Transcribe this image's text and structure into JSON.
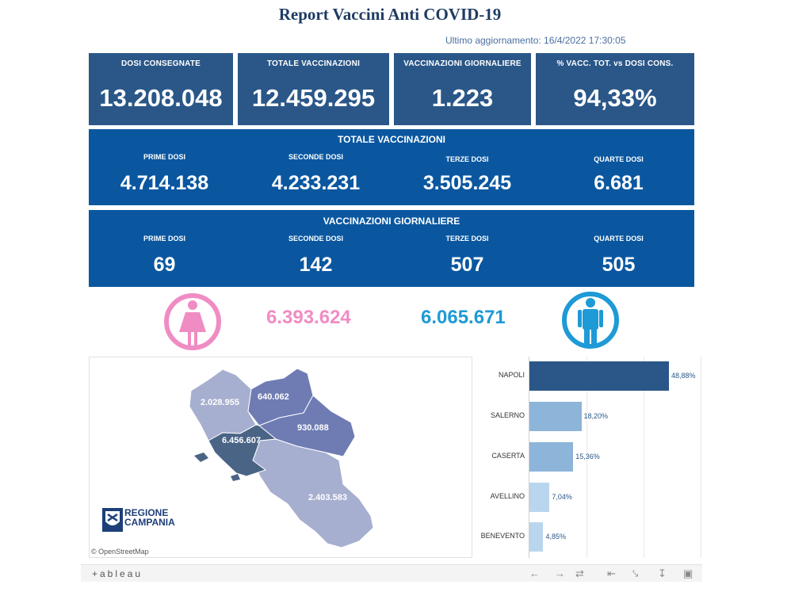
{
  "title": "Report Vaccini Anti COVID-19",
  "updated": "Ultimo aggiornamento: 16/4/2022 17:30:05",
  "kpis": [
    {
      "label": "DOSI  CONSEGNATE",
      "value": "13.208.048"
    },
    {
      "label": "TOTALE VACCINAZIONI",
      "value": "12.459.295"
    },
    {
      "label": "VACCINAZIONI GIORNALIERE",
      "value": "1.223"
    },
    {
      "label": "% VACC. TOT. vs DOSI CONS.",
      "value": "94,33%"
    }
  ],
  "totale": {
    "title": "TOTALE VACCINAZIONI",
    "items": [
      {
        "label": "PRIME DOSI",
        "value": "4.714.138"
      },
      {
        "label": "SECONDE DOSI",
        "value": "4.233.231"
      },
      {
        "label": "TERZE DOSI",
        "value": "3.505.245"
      },
      {
        "label": "QUARTE DOSI",
        "value": "6.681"
      }
    ]
  },
  "giornaliere": {
    "title": "VACCINAZIONI GIORNALIERE",
    "items": [
      {
        "label": "PRIME DOSI",
        "value": "69"
      },
      {
        "label": "SECONDE DOSI",
        "value": "142"
      },
      {
        "label": "TERZE DOSI",
        "value": "507"
      },
      {
        "label": "QUARTE DOSI",
        "value": "505"
      }
    ]
  },
  "gender": {
    "female_value": "6.393.624",
    "male_value": "6.065.671",
    "female_icon": "female-icon",
    "male_icon": "male-icon",
    "female_color": "#f08cc4",
    "male_color": "#1e9ad6"
  },
  "map": {
    "labels": {
      "caserta": "2.028.955",
      "benevento": "640.062",
      "avellino": "930.088",
      "napoli": "6.456.607",
      "salerno": "2.403.583"
    },
    "logo_line1": "REGIONE",
    "logo_line2": "CAMPANIA",
    "attribution": "© OpenStreetMap"
  },
  "chart_data": {
    "type": "bar",
    "orientation": "horizontal",
    "categories": [
      "NAPOLI",
      "SALERNO",
      "CASERTA",
      "AVELLINO",
      "BENEVENTO"
    ],
    "values": [
      48.88,
      18.2,
      15.36,
      7.04,
      4.85
    ],
    "value_labels": [
      "48,88%",
      "18,20%",
      "15,36%",
      "7,04%",
      "4,85%"
    ],
    "colors": [
      "#2a5788",
      "#8db4d9",
      "#8db4d9",
      "#b9d6ee",
      "#b9d6ee"
    ],
    "xlim": [
      0,
      60
    ],
    "grid": true
  },
  "toolbar": {
    "logo": "+ableau"
  }
}
